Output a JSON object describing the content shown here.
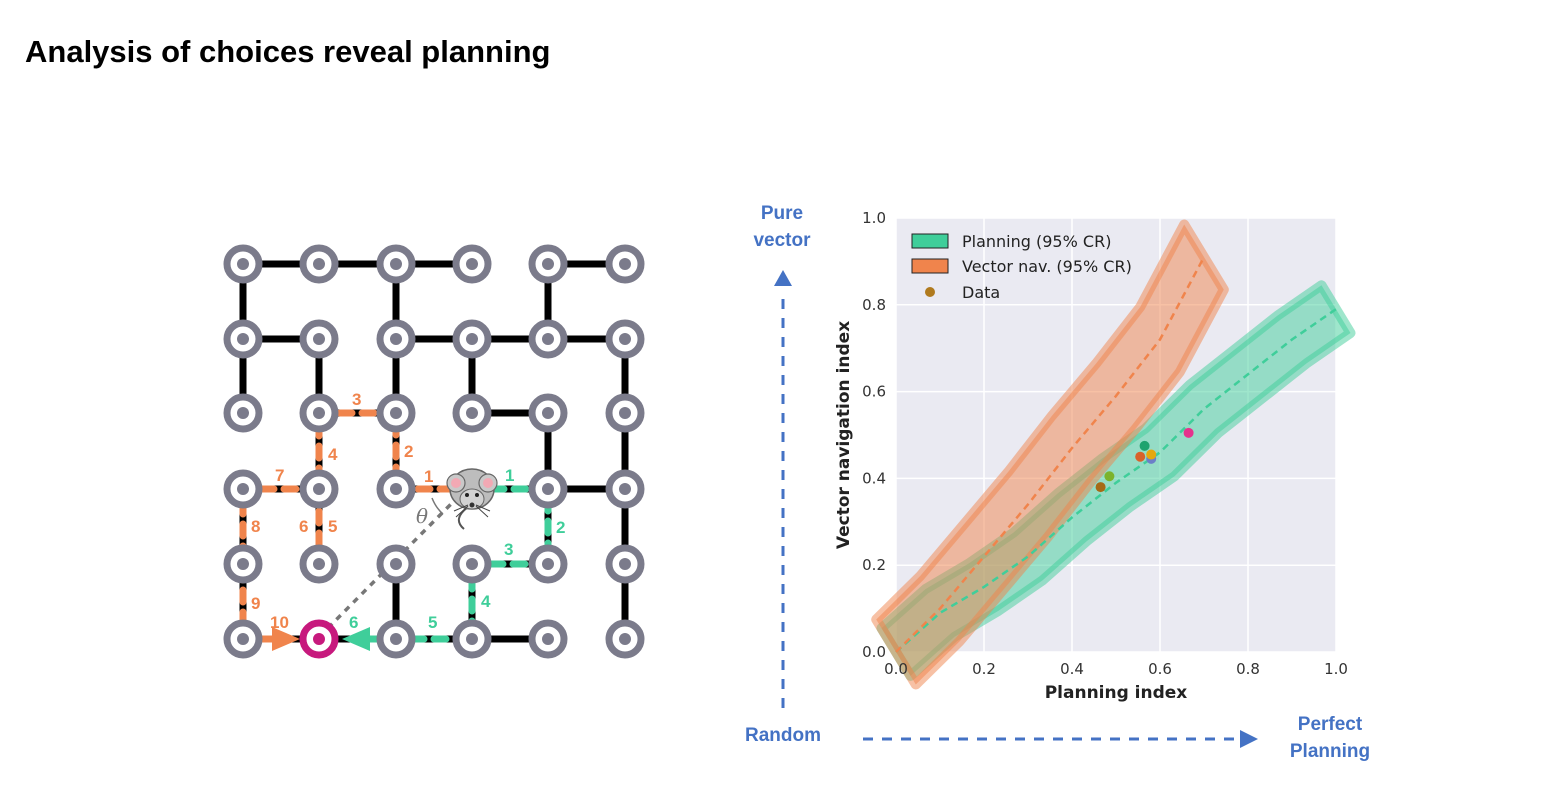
{
  "slide": {
    "title": "Analysis of choices reveal planning"
  },
  "colors": {
    "wall": "#000000",
    "node": "#7b7b8b",
    "orange": "#F0844C",
    "green": "#3FCE9A",
    "goal": "#C7197D",
    "blue": "#4472C4",
    "dashed_gray": "#777777"
  },
  "maze": {
    "theta_label": "θ",
    "orange_labels": [
      "1",
      "2",
      "3",
      "4",
      "5",
      "6",
      "7",
      "8",
      "9",
      "10"
    ],
    "green_labels": [
      "1",
      "2",
      "3",
      "4",
      "5",
      "6"
    ],
    "icons": [
      "mouse-icon",
      "goal-icon"
    ]
  },
  "axes_annotations": {
    "pure_vector": "Pure vector",
    "pure_vector_line1": "Pure",
    "pure_vector_line2": "vector",
    "random": "Random",
    "perfect_planning_line1": "Perfect",
    "perfect_planning_line2": "Planning"
  },
  "chart_data": {
    "type": "area",
    "xlabel": "Planning index",
    "ylabel": "Vector navigation index",
    "xlim": [
      0,
      1.0
    ],
    "ylim": [
      0,
      1.0
    ],
    "xticks": [
      "0.0",
      "0.2",
      "0.4",
      "0.6",
      "0.8",
      "1.0"
    ],
    "yticks": [
      "0.0",
      "0.2",
      "0.4",
      "0.6",
      "0.8",
      "1.0"
    ],
    "grid": true,
    "legend_position": "top-left",
    "series": [
      {
        "name": "Planning (95% CR)",
        "color": "#3FCE9A",
        "x": [
          0.0,
          0.1,
          0.2,
          0.3,
          0.4,
          0.5,
          0.6,
          0.7,
          0.8,
          0.9,
          1.0
        ],
        "y": [
          0.0,
          0.09,
          0.15,
          0.22,
          0.31,
          0.39,
          0.46,
          0.56,
          0.64,
          0.72,
          0.79
        ],
        "band_halfwidth": 0.055
      },
      {
        "name": "Vector nav. (95% CR)",
        "color": "#F0844C",
        "x": [
          0.0,
          0.1,
          0.2,
          0.3,
          0.4,
          0.5,
          0.6,
          0.7
        ],
        "y": [
          0.0,
          0.1,
          0.22,
          0.34,
          0.47,
          0.59,
          0.72,
          0.91
        ],
        "band_halfwidth": 0.075
      }
    ],
    "data_points": {
      "name": "Data",
      "legend_color": "#B07A1E",
      "points": [
        {
          "x": 0.465,
          "y": 0.38,
          "color": "#A66A16"
        },
        {
          "x": 0.485,
          "y": 0.405,
          "color": "#7CB32C"
        },
        {
          "x": 0.555,
          "y": 0.45,
          "color": "#D9612A"
        },
        {
          "x": 0.565,
          "y": 0.475,
          "color": "#1FA36F"
        },
        {
          "x": 0.58,
          "y": 0.445,
          "color": "#6C7FC8"
        },
        {
          "x": 0.58,
          "y": 0.455,
          "color": "#E5A80E"
        },
        {
          "x": 0.665,
          "y": 0.505,
          "color": "#E5338C"
        }
      ]
    }
  }
}
